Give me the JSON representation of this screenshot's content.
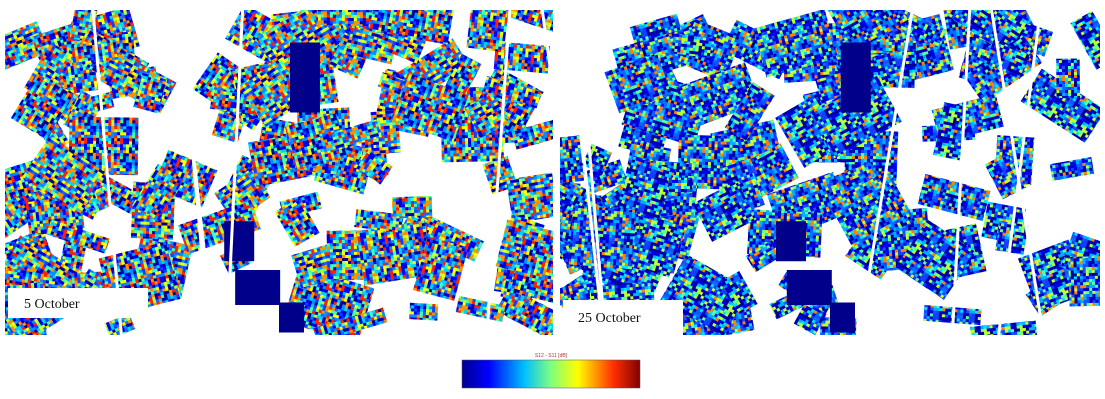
{
  "panels": [
    {
      "label": "5 October"
    },
    {
      "label": "25 October"
    }
  ],
  "colorbar": {
    "title": "S12 - S11 [dB]"
  }
}
